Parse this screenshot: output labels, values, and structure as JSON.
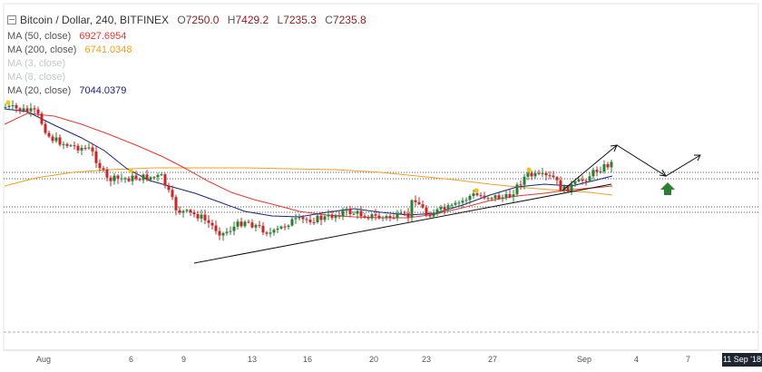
{
  "header": {
    "symbol": "Bitcoin / Dollar, 240, BITFINEX",
    "open_label": "O",
    "open": "7250.0",
    "high_label": "H",
    "high": "7429.2",
    "low_label": "L",
    "low": "7235.3",
    "close_label": "C",
    "close": "7235.8"
  },
  "indicators": [
    {
      "label": "MA (50, close)",
      "value": "6927.6954",
      "color": "#e53935"
    },
    {
      "label": "MA (200, close)",
      "value": "6741.0348",
      "color": "#f0a020"
    },
    {
      "label": "MA (3, close)",
      "value": "",
      "color": "#c3c7cc"
    },
    {
      "label": "MA (8, close)",
      "value": "",
      "color": "#c3c7cc"
    },
    {
      "label": "MA (20, close)",
      "value": "7044.0379",
      "color": "#1a237e"
    }
  ],
  "x_axis": {
    "ticks": [
      "Aug",
      "6",
      "9",
      "13",
      "16",
      "20",
      "23",
      "27",
      "Sep",
      "4",
      "7"
    ],
    "current_date": "11 Sep '18"
  },
  "colors": {
    "up": "#2e7d32",
    "down": "#c62828",
    "arrow": "#2e7d32",
    "marker": "#f4c20d"
  }
}
